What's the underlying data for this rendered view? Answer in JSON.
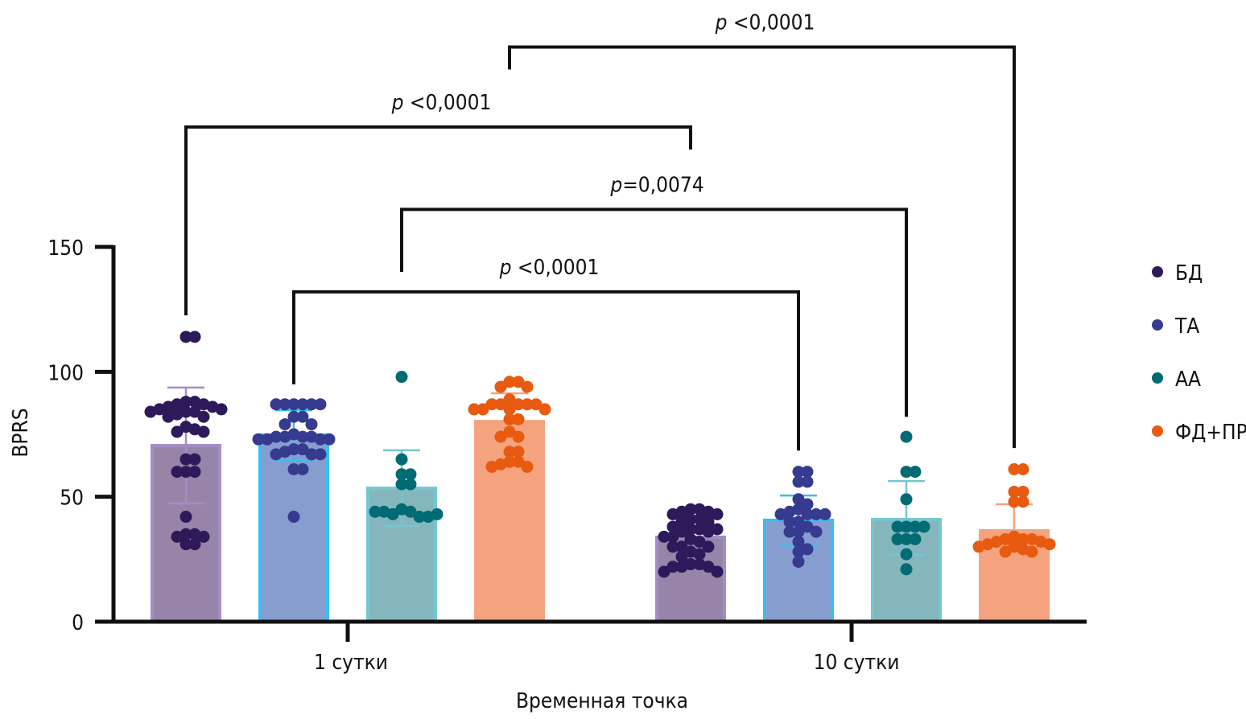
{
  "chart_data": {
    "type": "bar",
    "xlabel": "Временная точка",
    "ylabel": "BPRS",
    "ylim": [
      0,
      150
    ],
    "yticks": [
      0,
      50,
      100,
      150
    ],
    "categories": [
      "1 сутки",
      "10 сутки"
    ],
    "legend_position": "right",
    "grid": false,
    "series": [
      {
        "name": "БД",
        "dot_color": "#2e1a5a",
        "bar_color": "#9685a8",
        "edge_color": "#a48cc6",
        "values": [
          70.5,
          33.8
        ],
        "error": [
          [
            47.3,
            93.7
          ],
          [
            null,
            null
          ]
        ],
        "points": [
          [
            114,
            114,
            88,
            88,
            87,
            87,
            86,
            86,
            85,
            85,
            84,
            84,
            84,
            83,
            82,
            82,
            78,
            77,
            76,
            76,
            65,
            65,
            60,
            60,
            60,
            42,
            35,
            35,
            34,
            34,
            31,
            31
          ],
          [
            45,
            45,
            44,
            44,
            43,
            43,
            41,
            41,
            40,
            40,
            38,
            37,
            37,
            37,
            36,
            36,
            34,
            34,
            33,
            32,
            30,
            30,
            30,
            28,
            27,
            26,
            23,
            23,
            22,
            22,
            22,
            20,
            20
          ]
        ]
      },
      {
        "name": "ТА",
        "dot_color": "#363b8f",
        "bar_color": "#879dd0",
        "edge_color": "#3bbdf0",
        "values": [
          74.7,
          40.6
        ],
        "error": [
          [
            64.4,
            84.6
          ],
          [
            30.5,
            50.5
          ]
        ],
        "points": [
          [
            87,
            87,
            87,
            87,
            87,
            87,
            82,
            82,
            79,
            79,
            75,
            74,
            74,
            74,
            74,
            73,
            73,
            73,
            73,
            69,
            69,
            68,
            67,
            67,
            67,
            61,
            61,
            42
          ],
          [
            60,
            60,
            56,
            56,
            49,
            47,
            45,
            44,
            43,
            43,
            43,
            43,
            40,
            40,
            38,
            36,
            36,
            36,
            32,
            29,
            28,
            24
          ]
        ]
      },
      {
        "name": "АА",
        "dot_color": "#006b73",
        "bar_color": "#86b6bd",
        "edge_color": "#74c7d0",
        "values": [
          53.4,
          40.9
        ],
        "error": [
          [
            38.3,
            68.6
          ],
          [
            26.7,
            56.3
          ]
        ],
        "points": [
          [
            98,
            65,
            59,
            59,
            55,
            55,
            45,
            44,
            43,
            42,
            44,
            42,
            44,
            43
          ],
          [
            74,
            60,
            60,
            49,
            38,
            38,
            38,
            38,
            33,
            33,
            33,
            27,
            21
          ]
        ]
      },
      {
        "name": "ФД+ПР",
        "dot_color": "#e85a10",
        "bar_color": "#f4a37e",
        "edge_color": "#f4a37e",
        "values": [
          80.1,
          36.4
        ],
        "error": [
          [
            69,
            91.4
          ],
          [
            26,
            47
          ]
        ],
        "points": [
          [
            96,
            96,
            94,
            94,
            89,
            87,
            87,
            87,
            87,
            87,
            85,
            85,
            85,
            85,
            81,
            81,
            76,
            74,
            74,
            68,
            68,
            64,
            64,
            63,
            62,
            62
          ],
          [
            61,
            61,
            52,
            52,
            48,
            48,
            34,
            33,
            33,
            33,
            32,
            32,
            31,
            31,
            30,
            30,
            29,
            28,
            28
          ]
        ]
      }
    ],
    "annotations": [
      {
        "label_italic": "p",
        "label": " <0,0001",
        "from": "1 сутки / ФД+ПР",
        "to": "10 сутки / ФД+ПР",
        "level": 230,
        "leg_from": 221,
        "leg_to": 69.5
      },
      {
        "label_italic": "p",
        "label": " <0,0001",
        "from": "1 сутки / БД",
        "to": "10 сутки / БД",
        "level": 198,
        "leg_from": 122.6,
        "leg_to": 189
      },
      {
        "label_italic": "p",
        "label": "=0,0074",
        "from": "1 сутки / АА",
        "to": "10 сутки / АА",
        "level": 165,
        "leg_from": 140,
        "leg_to": 82
      },
      {
        "label_italic": "p",
        "label": " <0,0001",
        "from": "1 сутки / ТА",
        "to": "10 сутки / ТА",
        "level": 132,
        "leg_from": 95,
        "leg_to": 68.5
      }
    ]
  }
}
